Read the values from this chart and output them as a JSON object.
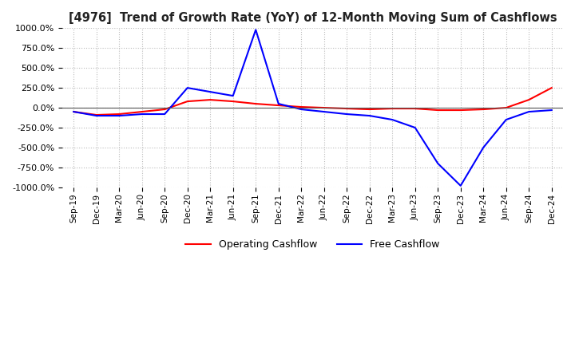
{
  "title": "[4976]  Trend of Growth Rate (YoY) of 12-Month Moving Sum of Cashflows",
  "ylim": [
    -1000,
    1000
  ],
  "yticks": [
    -1000,
    -750,
    -500,
    -250,
    0,
    250,
    500,
    750,
    1000
  ],
  "background_color": "#ffffff",
  "grid_color": "#bbbbbb",
  "operating_color": "#ff0000",
  "free_color": "#0000ff",
  "legend_labels": [
    "Operating Cashflow",
    "Free Cashflow"
  ],
  "x_labels": [
    "Sep-19",
    "Dec-19",
    "Mar-20",
    "Jun-20",
    "Sep-20",
    "Dec-20",
    "Mar-21",
    "Jun-21",
    "Sep-21",
    "Dec-21",
    "Mar-22",
    "Jun-22",
    "Sep-22",
    "Dec-22",
    "Mar-23",
    "Jun-23",
    "Sep-23",
    "Dec-23",
    "Mar-24",
    "Jun-24",
    "Sep-24",
    "Dec-24"
  ],
  "operating_cashflow": [
    -50,
    -90,
    -80,
    -50,
    -20,
    80,
    100,
    80,
    50,
    30,
    10,
    0,
    -10,
    -20,
    -10,
    -10,
    -30,
    -30,
    -20,
    0,
    100,
    250
  ],
  "free_cashflow": [
    -50,
    -100,
    -100,
    -80,
    -80,
    250,
    200,
    150,
    980,
    50,
    -20,
    -50,
    -80,
    -100,
    -150,
    -250,
    -700,
    -980,
    -500,
    -150,
    -50,
    -30
  ]
}
